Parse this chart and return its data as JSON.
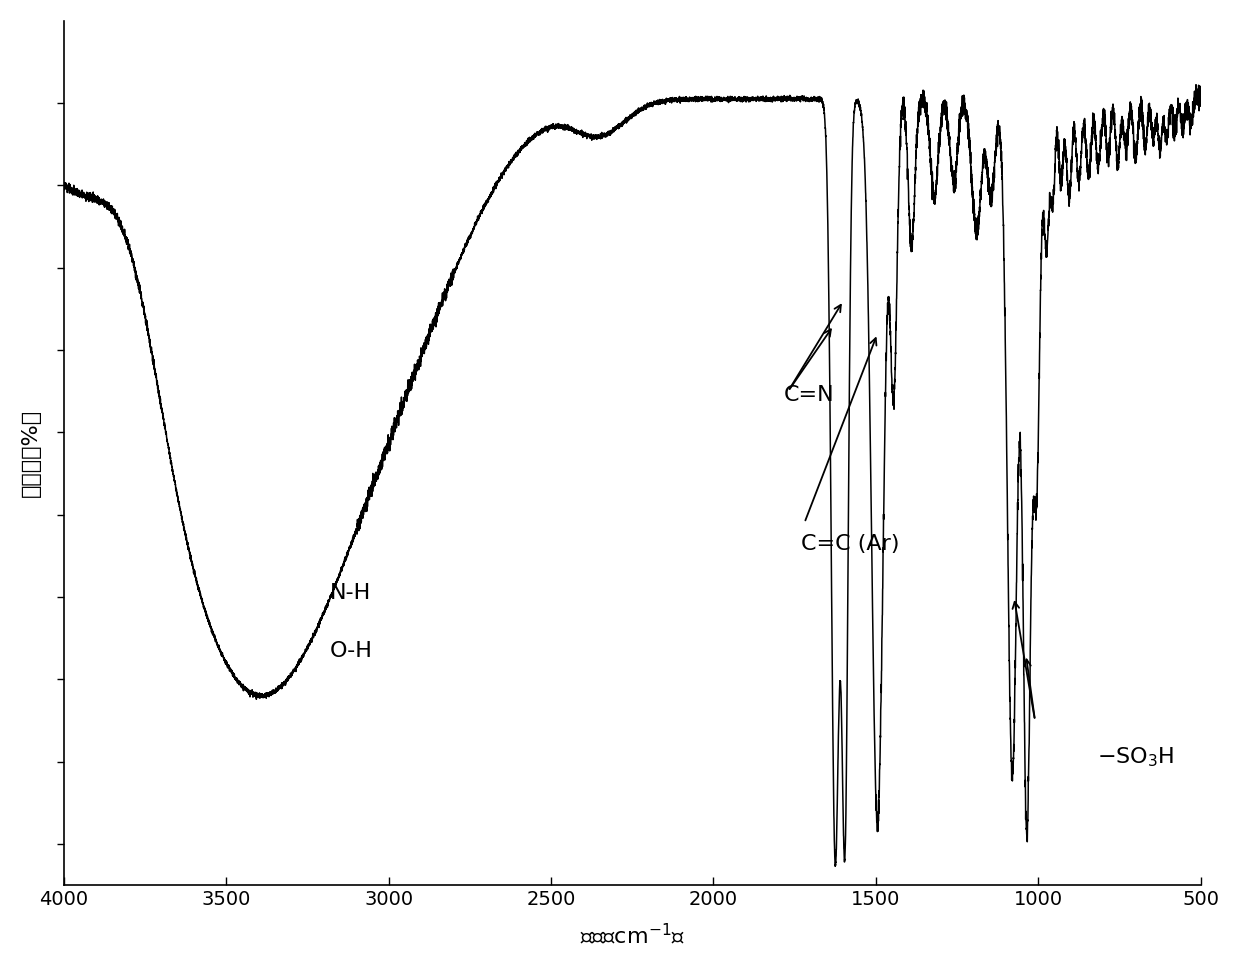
{
  "xlabel": "波数（cm-1）",
  "ylabel": "透过率（%）",
  "xlim": [
    4000,
    500
  ],
  "ylim": [
    0,
    1.05
  ],
  "background_color": "#ffffff",
  "line_color": "#000000",
  "xticks": [
    4000,
    3500,
    3000,
    2500,
    2000,
    1500,
    1000,
    500
  ],
  "xtick_labels": [
    "4000",
    "3500",
    "3000",
    "2500",
    "2000",
    "1500",
    "1000",
    "500"
  ]
}
